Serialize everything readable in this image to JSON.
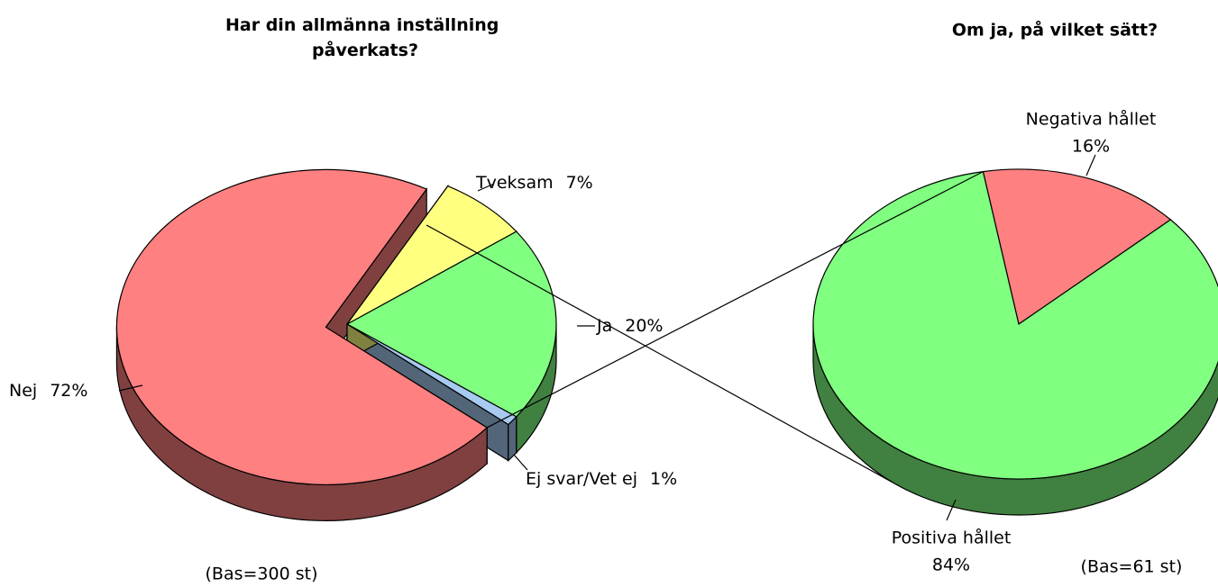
{
  "chart_data": [
    {
      "type": "pie3d",
      "title": "Har din allmänna inställning påverkats?",
      "categories": [
        "Ja",
        "Ej svar/Vet ej",
        "Nej",
        "Tveksam"
      ],
      "values": [
        20,
        1,
        72,
        7
      ],
      "value_labels": [
        "20%",
        "1%",
        "72%",
        "7%"
      ],
      "colors": [
        "#80ff80",
        "#a6caf0",
        "#ff8080",
        "#ffff80"
      ],
      "note": "(Bas=300 st)"
    },
    {
      "type": "pie3d",
      "title": "Om ja, på vilket sätt?",
      "categories": [
        "Negativa hållet",
        "Positiva hållet"
      ],
      "values": [
        16,
        84
      ],
      "value_labels": [
        "16%",
        "84%"
      ],
      "colors": [
        "#ff8080",
        "#80ff80"
      ],
      "note": "(Bas=61 st)"
    }
  ]
}
